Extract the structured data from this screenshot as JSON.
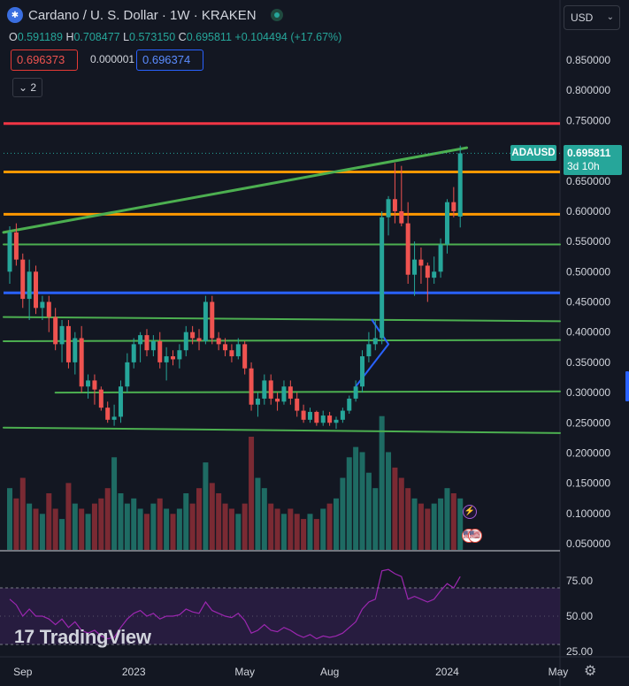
{
  "header": {
    "title": "Cardano / U. S. Dollar · 1W · KRAKEN",
    "logo_glyph": "✱",
    "ohlc": [
      {
        "k": "O",
        "v": "0.591189"
      },
      {
        "k": "H",
        "v": "0.708477"
      },
      {
        "k": "L",
        "v": "0.573150"
      },
      {
        "k": "C",
        "v": "0.695811"
      },
      {
        "k": "",
        "v": "+0.104494 (+17.67%)"
      }
    ],
    "sell_price": "0.696373",
    "spread": "0.000001",
    "buy_price": "0.696374",
    "indicators_count": "2",
    "indicators_chevron": "⌄"
  },
  "currency_select": {
    "value": "USD",
    "chevron": "⌄"
  },
  "last_price": {
    "symbol": "ADAUSD",
    "price": "0.695811",
    "countdown": "3d 10h"
  },
  "brand": {
    "logo": "17",
    "name": "TradingView"
  },
  "settings_icon": "⚙",
  "event_markers": {
    "bolt": "⚡",
    "us": "🇺🇸"
  },
  "colors": {
    "background": "#131722",
    "up": "#26a69a",
    "down": "#ef5350",
    "vol_up": "#1e6b63",
    "vol_down": "#7a2a33",
    "red_line": "#f23645",
    "orange_line": "#ff9800",
    "green_line": "#4caf50",
    "blue_line": "#2962ff",
    "rsi": "#9c27b0"
  },
  "chart_data": {
    "type": "candlestick",
    "symbol": "ADAUSD",
    "interval": "1W",
    "exchange": "KRAKEN",
    "y_ticks": [
      "0.850000",
      "0.800000",
      "0.750000",
      "0.700000",
      "0.650000",
      "0.600000",
      "0.550000",
      "0.500000",
      "0.450000",
      "0.400000",
      "0.350000",
      "0.300000",
      "0.250000",
      "0.200000",
      "0.150000",
      "0.100000",
      "0.050000"
    ],
    "ylim": [
      0.05,
      0.85
    ],
    "x_ticks": [
      {
        "label": "Sep",
        "week": 2
      },
      {
        "label": "2023",
        "week": 19
      },
      {
        "label": "May",
        "week": 36
      },
      {
        "label": "Aug",
        "week": 49
      },
      {
        "label": "2024",
        "week": 67
      },
      {
        "label": "May",
        "week": 84
      }
    ],
    "candles": [
      [
        0.5,
        0.575,
        0.48,
        0.565
      ],
      [
        0.565,
        0.58,
        0.51,
        0.52
      ],
      [
        0.52,
        0.53,
        0.44,
        0.455
      ],
      [
        0.455,
        0.52,
        0.42,
        0.5
      ],
      [
        0.5,
        0.51,
        0.43,
        0.44
      ],
      [
        0.44,
        0.46,
        0.42,
        0.45
      ],
      [
        0.45,
        0.46,
        0.4,
        0.425
      ],
      [
        0.425,
        0.44,
        0.37,
        0.38
      ],
      [
        0.38,
        0.42,
        0.35,
        0.41
      ],
      [
        0.41,
        0.42,
        0.34,
        0.35
      ],
      [
        0.35,
        0.4,
        0.33,
        0.39
      ],
      [
        0.39,
        0.41,
        0.3,
        0.31
      ],
      [
        0.31,
        0.33,
        0.29,
        0.32
      ],
      [
        0.32,
        0.33,
        0.28,
        0.305
      ],
      [
        0.305,
        0.31,
        0.27,
        0.275
      ],
      [
        0.275,
        0.285,
        0.25,
        0.255
      ],
      [
        0.255,
        0.28,
        0.245,
        0.26
      ],
      [
        0.26,
        0.32,
        0.25,
        0.31
      ],
      [
        0.31,
        0.365,
        0.3,
        0.35
      ],
      [
        0.35,
        0.39,
        0.34,
        0.38
      ],
      [
        0.38,
        0.4,
        0.35,
        0.395
      ],
      [
        0.395,
        0.405,
        0.36,
        0.37
      ],
      [
        0.37,
        0.395,
        0.36,
        0.385
      ],
      [
        0.385,
        0.4,
        0.34,
        0.35
      ],
      [
        0.35,
        0.375,
        0.32,
        0.36
      ],
      [
        0.36,
        0.37,
        0.345,
        0.355
      ],
      [
        0.355,
        0.38,
        0.34,
        0.37
      ],
      [
        0.37,
        0.41,
        0.36,
        0.4
      ],
      [
        0.4,
        0.41,
        0.38,
        0.39
      ],
      [
        0.39,
        0.405,
        0.37,
        0.385
      ],
      [
        0.385,
        0.46,
        0.38,
        0.45
      ],
      [
        0.45,
        0.46,
        0.38,
        0.39
      ],
      [
        0.39,
        0.4,
        0.37,
        0.38
      ],
      [
        0.38,
        0.39,
        0.36,
        0.37
      ],
      [
        0.37,
        0.38,
        0.35,
        0.36
      ],
      [
        0.36,
        0.39,
        0.355,
        0.38
      ],
      [
        0.38,
        0.385,
        0.33,
        0.34
      ],
      [
        0.34,
        0.35,
        0.27,
        0.28
      ],
      [
        0.28,
        0.3,
        0.26,
        0.29
      ],
      [
        0.29,
        0.33,
        0.28,
        0.32
      ],
      [
        0.32,
        0.33,
        0.28,
        0.29
      ],
      [
        0.29,
        0.3,
        0.27,
        0.285
      ],
      [
        0.285,
        0.32,
        0.28,
        0.31
      ],
      [
        0.31,
        0.32,
        0.28,
        0.29
      ],
      [
        0.29,
        0.3,
        0.26,
        0.27
      ],
      [
        0.27,
        0.28,
        0.25,
        0.255
      ],
      [
        0.255,
        0.275,
        0.25,
        0.268
      ],
      [
        0.268,
        0.27,
        0.245,
        0.25
      ],
      [
        0.25,
        0.27,
        0.245,
        0.262
      ],
      [
        0.262,
        0.268,
        0.245,
        0.25
      ],
      [
        0.25,
        0.26,
        0.24,
        0.255
      ],
      [
        0.255,
        0.275,
        0.25,
        0.27
      ],
      [
        0.27,
        0.295,
        0.265,
        0.29
      ],
      [
        0.29,
        0.32,
        0.285,
        0.31
      ],
      [
        0.31,
        0.37,
        0.3,
        0.36
      ],
      [
        0.36,
        0.4,
        0.35,
        0.38
      ],
      [
        0.38,
        0.42,
        0.37,
        0.39
      ],
      [
        0.39,
        0.6,
        0.38,
        0.59
      ],
      [
        0.59,
        0.625,
        0.56,
        0.62
      ],
      [
        0.62,
        0.68,
        0.58,
        0.6
      ],
      [
        0.6,
        0.675,
        0.575,
        0.58
      ],
      [
        0.58,
        0.615,
        0.48,
        0.495
      ],
      [
        0.495,
        0.55,
        0.46,
        0.52
      ],
      [
        0.52,
        0.54,
        0.48,
        0.51
      ],
      [
        0.51,
        0.515,
        0.45,
        0.49
      ],
      [
        0.49,
        0.525,
        0.48,
        0.5
      ],
      [
        0.5,
        0.555,
        0.49,
        0.545
      ],
      [
        0.545,
        0.62,
        0.53,
        0.615
      ],
      [
        0.615,
        0.64,
        0.59,
        0.6
      ],
      [
        0.591189,
        0.708477,
        0.57315,
        0.695811
      ]
    ],
    "volume_max": 0.275,
    "volume": [
      0.12,
      0.1,
      0.14,
      0.09,
      0.08,
      0.07,
      0.11,
      0.08,
      0.06,
      0.13,
      0.09,
      0.08,
      0.07,
      0.09,
      0.1,
      0.12,
      0.18,
      0.11,
      0.09,
      0.1,
      0.08,
      0.07,
      0.09,
      0.1,
      0.08,
      0.07,
      0.08,
      0.11,
      0.09,
      0.12,
      0.17,
      0.13,
      0.11,
      0.09,
      0.08,
      0.07,
      0.09,
      0.22,
      0.14,
      0.12,
      0.09,
      0.08,
      0.07,
      0.08,
      0.07,
      0.06,
      0.07,
      0.06,
      0.08,
      0.09,
      0.1,
      0.14,
      0.18,
      0.2,
      0.19,
      0.15,
      0.12,
      0.26,
      0.19,
      0.16,
      0.14,
      0.12,
      0.1,
      0.09,
      0.08,
      0.09,
      0.1,
      0.12,
      0.11,
      0.1
    ],
    "horizontal_levels": [
      {
        "price": 0.745,
        "color": "red"
      },
      {
        "price": 0.665,
        "color": "orange"
      },
      {
        "price": 0.595,
        "color": "orange"
      },
      {
        "price": 0.465,
        "color": "blue"
      }
    ],
    "trendlines": [
      {
        "start": [
          -1,
          0.565
        ],
        "end": [
          70,
          0.705
        ],
        "color": "green",
        "width": 3
      },
      {
        "start": [
          -1,
          0.545
        ],
        "end": [
          85,
          0.545
        ],
        "color": "green",
        "width": 2
      },
      {
        "start": [
          -1,
          0.425
        ],
        "end": [
          85,
          0.418
        ],
        "color": "green",
        "width": 2
      },
      {
        "start": [
          -1,
          0.385
        ],
        "end": [
          85,
          0.387
        ],
        "color": "green",
        "width": 2
      },
      {
        "start": [
          7,
          0.3
        ],
        "end": [
          85,
          0.302
        ],
        "color": "green",
        "width": 2
      },
      {
        "start": [
          -1,
          0.242
        ],
        "end": [
          85,
          0.233
        ],
        "color": "green",
        "width": 2
      },
      {
        "start": [
          53,
          0.31
        ],
        "end": [
          58,
          0.38
        ],
        "color": "blue",
        "width": 2
      },
      {
        "start": [
          58,
          0.38
        ],
        "end": [
          55.5,
          0.42
        ],
        "color": "blue",
        "width": 2
      }
    ],
    "rsi": {
      "ticks": [
        "75.00",
        "50.00",
        "25.00"
      ],
      "overbought": 70,
      "oversold": 30,
      "values": [
        62,
        58,
        50,
        55,
        50,
        50,
        48,
        44,
        48,
        42,
        46,
        40,
        38,
        40,
        36,
        34,
        35,
        42,
        48,
        52,
        54,
        50,
        52,
        48,
        50,
        50,
        51,
        55,
        53,
        52,
        60,
        54,
        52,
        50,
        49,
        52,
        47,
        38,
        40,
        44,
        40,
        39,
        42,
        40,
        37,
        35,
        37,
        34,
        36,
        35,
        36,
        38,
        42,
        46,
        55,
        60,
        62,
        82,
        83,
        80,
        78,
        62,
        64,
        62,
        60,
        62,
        68,
        73,
        70,
        78
      ]
    },
    "title": "Cardano / U. S. Dollar · 1W · KRAKEN"
  }
}
